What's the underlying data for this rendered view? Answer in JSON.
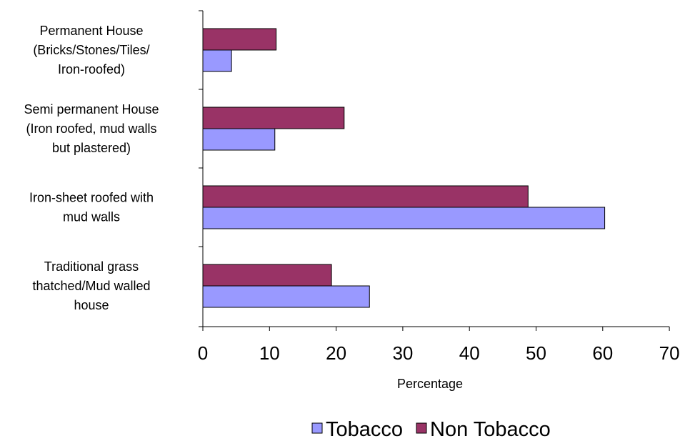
{
  "chart_data": {
    "type": "bar",
    "orientation": "horizontal",
    "title": "",
    "xlabel": "Percentage",
    "ylabel": "",
    "xlim": [
      0,
      70
    ],
    "xticks": [
      "0",
      "10",
      "20",
      "30",
      "40",
      "50",
      "60",
      "70"
    ],
    "grid": false,
    "legend_position": "bottom",
    "categories": [
      [
        "Permanent House",
        "(Bricks/Stones/Tiles/",
        "Iron-roofed)"
      ],
      [
        "Semi permanent House",
        "(Iron roofed, mud walls",
        "but plastered)"
      ],
      [
        "Iron-sheet roofed with",
        "mud walls"
      ],
      [
        "Traditional grass",
        "thatched/Mud walled",
        "house"
      ]
    ],
    "series": [
      {
        "name": "Tobacco",
        "color": "#9999ff",
        "values": [
          4.3,
          10.8,
          60.3,
          25.0
        ]
      },
      {
        "name": "Non Tobacco",
        "color": "#993366",
        "values": [
          11.0,
          21.2,
          48.8,
          19.3
        ]
      }
    ]
  }
}
